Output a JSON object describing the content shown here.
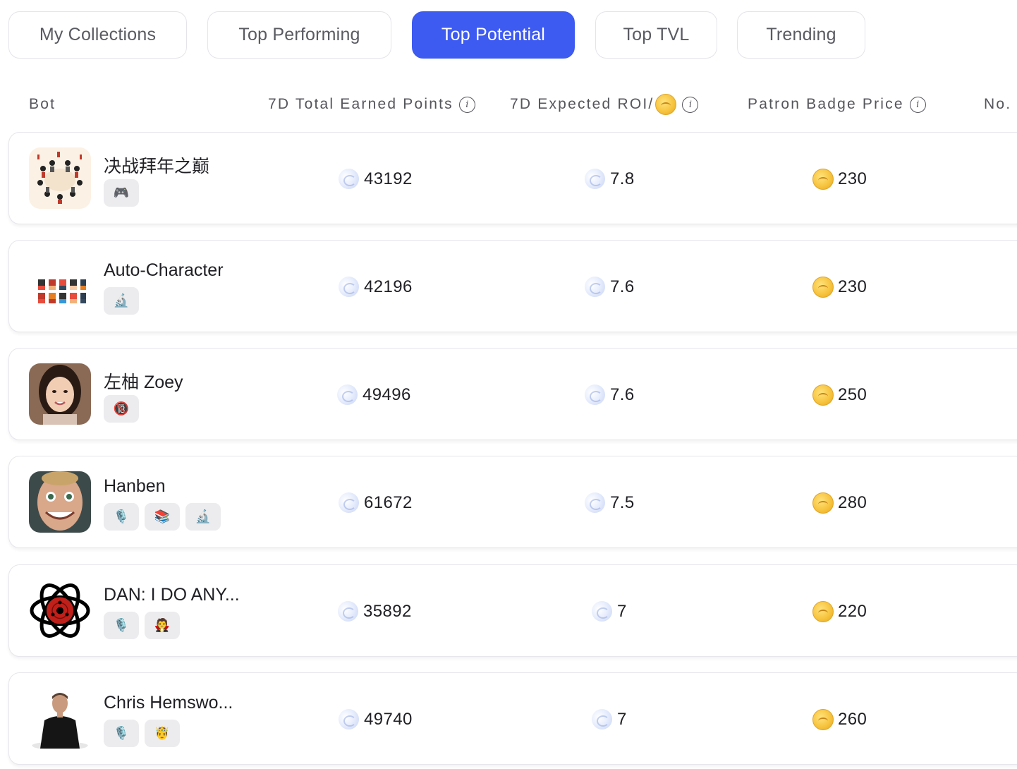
{
  "tabs": [
    {
      "label": "My Collections",
      "active": false
    },
    {
      "label": "Top Performing",
      "active": false
    },
    {
      "label": "Top Potential",
      "active": true
    },
    {
      "label": "Top TVL",
      "active": false
    },
    {
      "label": "Trending",
      "active": false
    }
  ],
  "columns": {
    "bot": "Bot",
    "earned_points": "7D Total Earned Points",
    "roi": "7D Expected ROI/",
    "badge_price": "Patron Badge Price",
    "number": "No."
  },
  "colors": {
    "accent": "#3d5af1",
    "coin": "#f6c23b",
    "point": "#c7d3f5"
  },
  "rows": [
    {
      "name": "决战拜年之巅",
      "avatar": "group-illustration-avatar",
      "tags": [
        "🎮"
      ],
      "points": "43192",
      "roi": "7.8",
      "price": "230"
    },
    {
      "name": "Auto-Character",
      "avatar": "pixel-characters-avatar",
      "tags": [
        "🔬"
      ],
      "points": "42196",
      "roi": "7.6",
      "price": "230"
    },
    {
      "name": "左柚 Zoey",
      "avatar": "woman-portrait-avatar",
      "tags": [
        "🔞"
      ],
      "points": "49496",
      "roi": "7.6",
      "price": "250"
    },
    {
      "name": "Hanben",
      "avatar": "man-face-avatar",
      "tags": [
        "🎙️",
        "📚",
        "🔬"
      ],
      "points": "61672",
      "roi": "7.5",
      "price": "280"
    },
    {
      "name": "DAN: I DO ANY...",
      "avatar": "sharingan-logo-avatar",
      "tags": [
        "🎙️",
        "🧛"
      ],
      "points": "35892",
      "roi": "7",
      "price": "220"
    },
    {
      "name": "Chris Hemswo...",
      "avatar": "man-suit-avatar",
      "tags": [
        "🎙️",
        "🤴"
      ],
      "points": "49740",
      "roi": "7",
      "price": "260"
    }
  ]
}
